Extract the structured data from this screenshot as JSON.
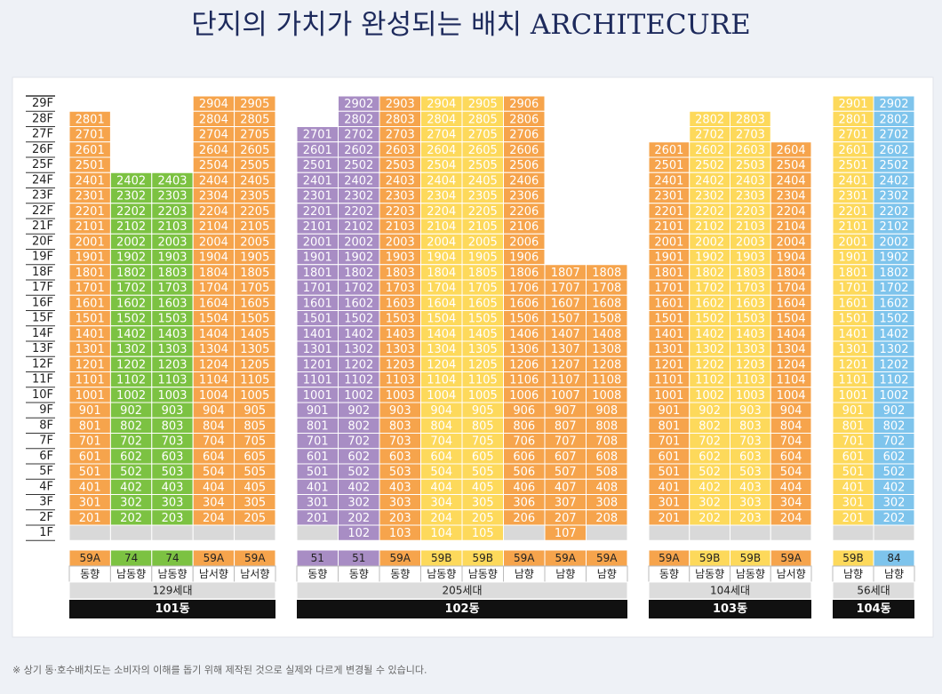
{
  "title": "단지의 가치가 완성되는 배치 ARCHITECURE",
  "floors": [
    "29F",
    "28F",
    "27F",
    "26F",
    "25F",
    "24F",
    "23F",
    "22F",
    "21F",
    "20F",
    "19F",
    "18F",
    "17F",
    "16F",
    "15F",
    "14F",
    "13F",
    "12F",
    "11F",
    "10F",
    "9F",
    "8F",
    "7F",
    "6F",
    "5F",
    "4F",
    "3F",
    "2F",
    "1F"
  ],
  "type_colors": {
    "59A": "#f6a44c",
    "74": "#7cc242",
    "51": "#a88dc4",
    "59B": "#fdd95b",
    "84": "#7ec4ec"
  },
  "buildings": [
    {
      "name": "101동",
      "households": "129세대",
      "lines": [
        {
          "type": "59A",
          "orientation": "동향",
          "units": [
            "2801",
            "2701",
            "2601",
            "2501",
            "2401",
            "2301",
            "2201",
            "2101",
            "2001",
            "1901",
            "1801",
            "1701",
            "1601",
            "1501",
            "1401",
            "1301",
            "1201",
            "1101",
            "1001",
            "901",
            "801",
            "701",
            "601",
            "501",
            "401",
            "301",
            "201",
            null
          ]
        },
        {
          "type": "74",
          "orientation": "남동향",
          "units": [
            "2402",
            "2302",
            "2202",
            "2102",
            "2002",
            "1902",
            "1802",
            "1702",
            "1602",
            "1502",
            "1402",
            "1302",
            "1202",
            "1102",
            "1002",
            "902",
            "802",
            "702",
            "602",
            "502",
            "402",
            "302",
            "202",
            null
          ]
        },
        {
          "type": "74",
          "orientation": "남동향",
          "units": [
            "2403",
            "2303",
            "2203",
            "2103",
            "2003",
            "1903",
            "1803",
            "1703",
            "1603",
            "1503",
            "1403",
            "1303",
            "1203",
            "1103",
            "1003",
            "903",
            "803",
            "703",
            "603",
            "503",
            "403",
            "303",
            "203",
            null
          ]
        },
        {
          "type": "59A",
          "orientation": "남서향",
          "units": [
            "2904",
            "2804",
            "2704",
            "2604",
            "2504",
            "2404",
            "2304",
            "2204",
            "2104",
            "2004",
            "1904",
            "1804",
            "1704",
            "1604",
            "1504",
            "1404",
            "1304",
            "1204",
            "1104",
            "1004",
            "904",
            "804",
            "704",
            "604",
            "504",
            "404",
            "304",
            "204",
            null
          ]
        },
        {
          "type": "59A",
          "orientation": "남서향",
          "units": [
            "2905",
            "2805",
            "2705",
            "2605",
            "2505",
            "2405",
            "2305",
            "2205",
            "2105",
            "2005",
            "1905",
            "1805",
            "1705",
            "1605",
            "1505",
            "1405",
            "1305",
            "1205",
            "1105",
            "1005",
            "905",
            "805",
            "705",
            "605",
            "505",
            "405",
            "305",
            "205",
            null
          ]
        }
      ]
    },
    {
      "name": "102동",
      "households": "205세대",
      "lines": [
        {
          "type": "51",
          "orientation": "동향",
          "units": [
            "2701",
            "2601",
            "2501",
            "2401",
            "2301",
            "2201",
            "2101",
            "2001",
            "1901",
            "1801",
            "1701",
            "1601",
            "1501",
            "1401",
            "1301",
            "1201",
            "1101",
            "1001",
            "901",
            "801",
            "701",
            "601",
            "501",
            "401",
            "301",
            "201",
            null
          ]
        },
        {
          "type": "51",
          "orientation": "동향",
          "units": [
            "2902",
            "2802",
            "2702",
            "2602",
            "2502",
            "2402",
            "2302",
            "2202",
            "2102",
            "2002",
            "1902",
            "1802",
            "1702",
            "1602",
            "1502",
            "1402",
            "1302",
            "1202",
            "1102",
            "1002",
            "902",
            "802",
            "702",
            "602",
            "502",
            "402",
            "302",
            "202",
            "102"
          ]
        },
        {
          "type": "59A",
          "orientation": "동향",
          "units": [
            "2903",
            "2803",
            "2703",
            "2603",
            "2503",
            "2403",
            "2303",
            "2203",
            "2103",
            "2003",
            "1903",
            "1803",
            "1703",
            "1603",
            "1503",
            "1403",
            "1303",
            "1203",
            "1103",
            "1003",
            "903",
            "803",
            "703",
            "603",
            "503",
            "403",
            "303",
            "203",
            "103"
          ]
        },
        {
          "type": "59B",
          "orientation": "남동향",
          "units": [
            "2904",
            "2804",
            "2704",
            "2604",
            "2504",
            "2404",
            "2304",
            "2204",
            "2104",
            "2004",
            "1904",
            "1804",
            "1704",
            "1604",
            "1504",
            "1404",
            "1304",
            "1204",
            "1104",
            "1004",
            "904",
            "804",
            "704",
            "604",
            "504",
            "404",
            "304",
            "204",
            "104"
          ]
        },
        {
          "type": "59B",
          "orientation": "남동향",
          "units": [
            "2905",
            "2805",
            "2705",
            "2605",
            "2505",
            "2405",
            "2305",
            "2205",
            "2105",
            "2005",
            "1905",
            "1805",
            "1705",
            "1605",
            "1505",
            "1405",
            "1305",
            "1205",
            "1105",
            "1005",
            "905",
            "805",
            "705",
            "605",
            "505",
            "405",
            "305",
            "205",
            "105"
          ]
        },
        {
          "type": "59A",
          "orientation": "남향",
          "units": [
            "2906",
            "2806",
            "2706",
            "2606",
            "2506",
            "2406",
            "2306",
            "2206",
            "2106",
            "2006",
            "1906",
            "1806",
            "1706",
            "1606",
            "1506",
            "1406",
            "1306",
            "1206",
            "1106",
            "1006",
            "906",
            "806",
            "706",
            "606",
            "506",
            "406",
            "306",
            "206",
            null
          ]
        },
        {
          "type": "59A",
          "orientation": "남향",
          "units": [
            "1807",
            "1707",
            "1607",
            "1507",
            "1407",
            "1307",
            "1207",
            "1107",
            "1007",
            "907",
            "807",
            "707",
            "607",
            "507",
            "407",
            "307",
            "207",
            "107"
          ]
        },
        {
          "type": "59A",
          "orientation": "남향",
          "units": [
            "1808",
            "1708",
            "1608",
            "1508",
            "1408",
            "1308",
            "1208",
            "1108",
            "1008",
            "908",
            "808",
            "708",
            "608",
            "508",
            "408",
            "308",
            "208",
            null
          ]
        }
      ]
    },
    {
      "name": "103동",
      "households": "104세대",
      "lines": [
        {
          "type": "59A",
          "orientation": "동향",
          "units": [
            "2601",
            "2501",
            "2401",
            "2301",
            "2201",
            "2101",
            "2001",
            "1901",
            "1801",
            "1701",
            "1601",
            "1501",
            "1401",
            "1301",
            "1201",
            "1101",
            "1001",
            "901",
            "801",
            "701",
            "601",
            "501",
            "401",
            "301",
            "201",
            null
          ]
        },
        {
          "type": "59B",
          "orientation": "남동향",
          "units": [
            "2802",
            "2702",
            "2602",
            "2502",
            "2402",
            "2302",
            "2202",
            "2102",
            "2002",
            "1902",
            "1802",
            "1702",
            "1602",
            "1502",
            "1402",
            "1302",
            "1202",
            "1102",
            "1002",
            "902",
            "802",
            "702",
            "602",
            "502",
            "402",
            "302",
            "202",
            null
          ]
        },
        {
          "type": "59B",
          "orientation": "남동향",
          "units": [
            "2803",
            "2703",
            "2603",
            "2503",
            "2403",
            "2303",
            "2203",
            "2103",
            "2003",
            "1903",
            "1803",
            "1703",
            "1603",
            "1503",
            "1403",
            "1303",
            "1203",
            "1103",
            "1003",
            "903",
            "803",
            "703",
            "603",
            "503",
            "403",
            "303",
            "203",
            null
          ]
        },
        {
          "type": "59A",
          "orientation": "남서향",
          "units": [
            "2604",
            "2504",
            "2404",
            "2304",
            "2204",
            "2104",
            "2004",
            "1904",
            "1804",
            "1704",
            "1604",
            "1504",
            "1404",
            "1304",
            "1204",
            "1104",
            "1004",
            "904",
            "804",
            "704",
            "604",
            "504",
            "404",
            "304",
            "204",
            null
          ]
        }
      ]
    },
    {
      "name": "104동",
      "households": "56세대",
      "lines": [
        {
          "type": "59B",
          "orientation": "남향",
          "units": [
            "2901",
            "2801",
            "2701",
            "2601",
            "2501",
            "2401",
            "2301",
            "2201",
            "2101",
            "2001",
            "1901",
            "1801",
            "1701",
            "1601",
            "1501",
            "1401",
            "1301",
            "1201",
            "1101",
            "1001",
            "901",
            "801",
            "701",
            "601",
            "501",
            "401",
            "301",
            "201",
            null
          ]
        },
        {
          "type": "84",
          "orientation": "남향",
          "units": [
            "2902",
            "2802",
            "2702",
            "2602",
            "2502",
            "2402",
            "2302",
            "2202",
            "2102",
            "2002",
            "1902",
            "1802",
            "1702",
            "1602",
            "1502",
            "1402",
            "1302",
            "1202",
            "1102",
            "1002",
            "902",
            "802",
            "702",
            "602",
            "502",
            "402",
            "302",
            "202",
            null
          ]
        }
      ]
    }
  ],
  "footnote": "※ 상기 동·호수배치도는 소비자의 이해를 돕기 위해 제작된 것으로 실제와 다르게 변경될 수 있습니다."
}
